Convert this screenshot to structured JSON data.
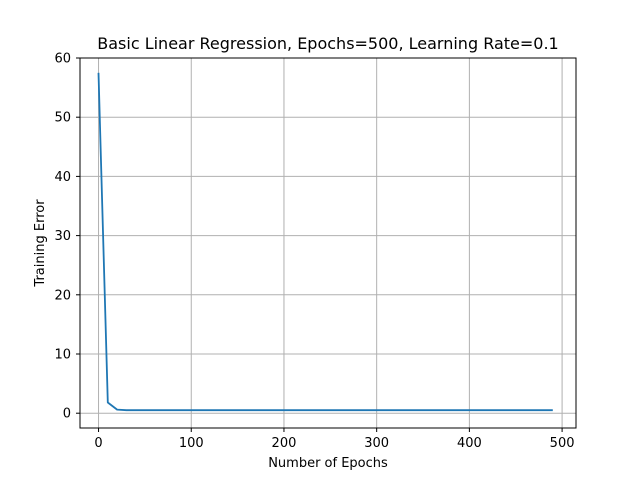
{
  "chart_data": {
    "type": "line",
    "title": "Basic Linear Regression, Epochs=500, Learning Rate=0.1",
    "xlabel": "Number of Epochs",
    "ylabel": "Training Error",
    "xlim": [
      -20,
      515
    ],
    "ylim": [
      -2.5,
      60
    ],
    "xticks": [
      0,
      100,
      200,
      300,
      400,
      500
    ],
    "yticks": [
      0,
      10,
      20,
      30,
      40,
      50,
      60
    ],
    "grid": true,
    "line_color": "#1f77b4",
    "grid_color": "#b0b0b0",
    "series": [
      {
        "x": [
          0,
          10,
          20,
          30,
          40,
          50,
          60,
          70,
          80,
          90,
          100,
          120,
          140,
          160,
          180,
          200,
          220,
          240,
          260,
          280,
          300,
          320,
          340,
          360,
          380,
          400,
          420,
          440,
          460,
          480,
          490
        ],
        "values": [
          57.5,
          1.8,
          0.6,
          0.5,
          0.5,
          0.5,
          0.5,
          0.5,
          0.5,
          0.5,
          0.5,
          0.5,
          0.5,
          0.5,
          0.5,
          0.5,
          0.5,
          0.5,
          0.5,
          0.5,
          0.5,
          0.5,
          0.5,
          0.5,
          0.5,
          0.5,
          0.5,
          0.5,
          0.5,
          0.5,
          0.5
        ]
      }
    ]
  }
}
